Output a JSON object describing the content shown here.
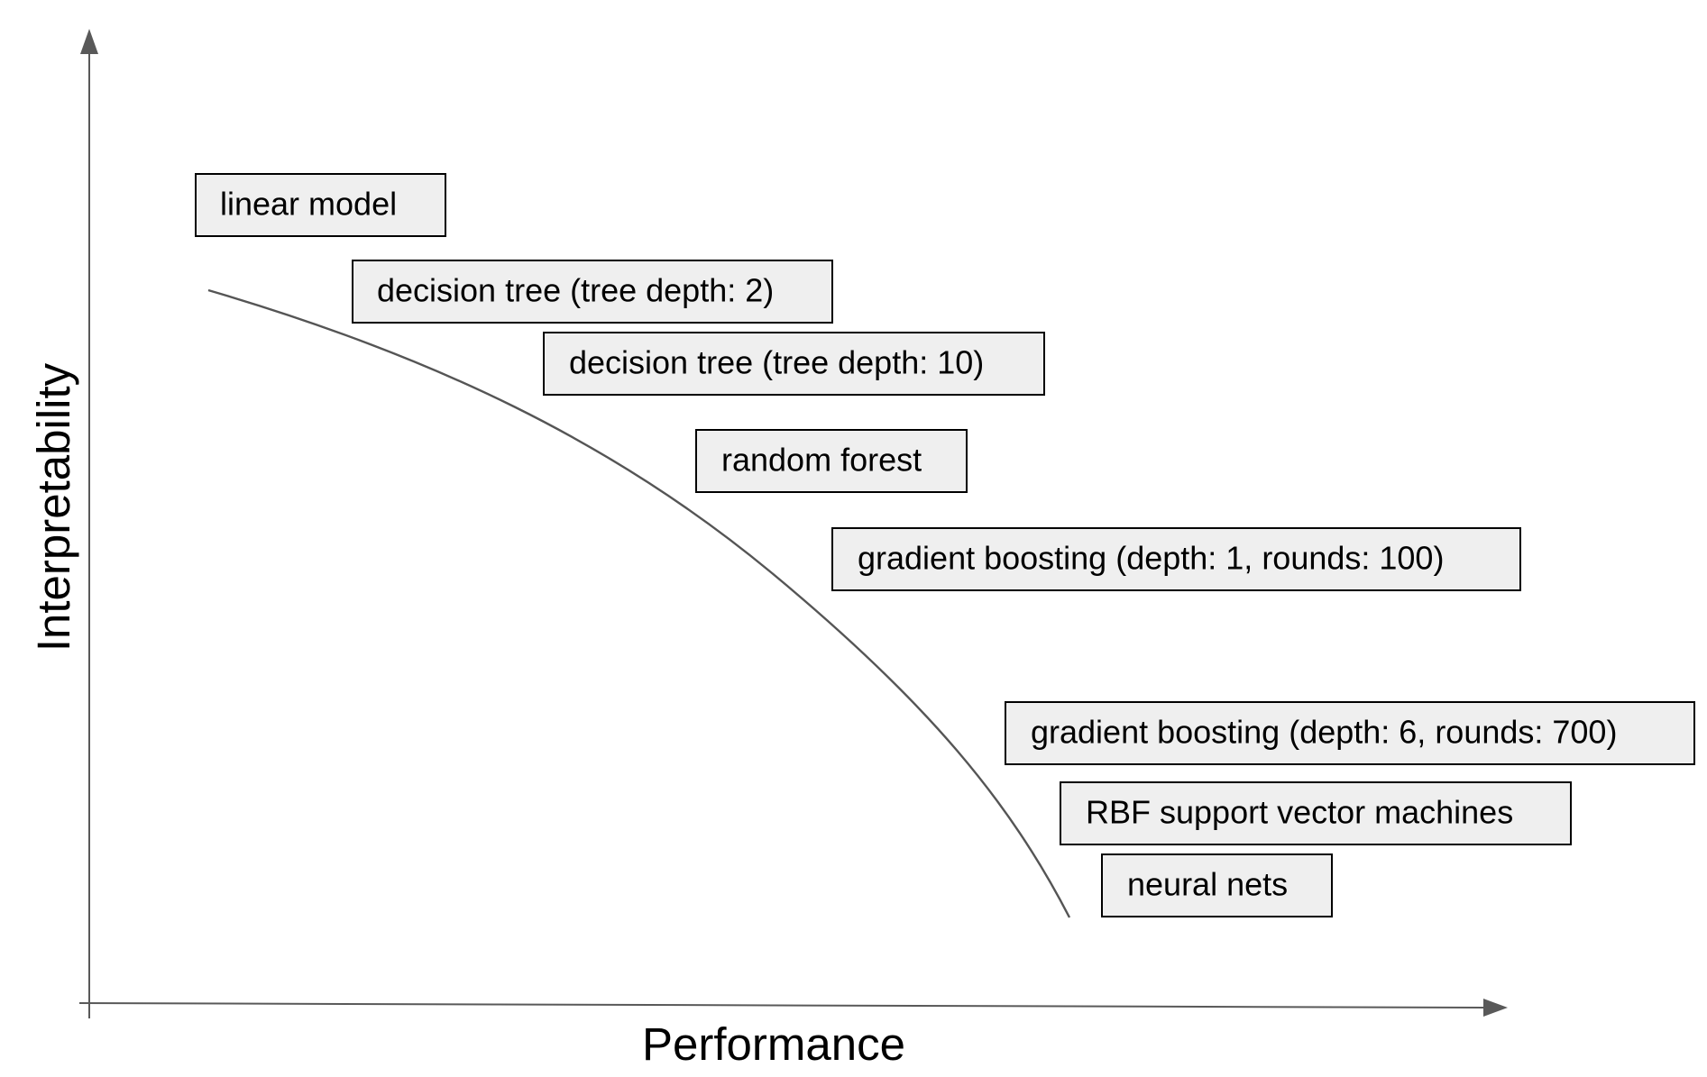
{
  "axes": {
    "x_label": "Performance",
    "y_label": "Interpretability"
  },
  "models": [
    {
      "label": "linear model"
    },
    {
      "label": "decision tree (tree depth: 2)"
    },
    {
      "label": "decision tree (tree depth: 10)"
    },
    {
      "label": "random forest"
    },
    {
      "label": "gradient boosting (depth: 1, rounds: 100)"
    },
    {
      "label": "gradient boosting (depth: 6, rounds: 700)"
    },
    {
      "label": "RBF support vector machines"
    },
    {
      "label": "neural nets"
    }
  ],
  "colors": {
    "axis": "#595959",
    "curve": "#555555",
    "box_fill": "#efefef",
    "box_border": "#000000",
    "text": "#000000"
  }
}
